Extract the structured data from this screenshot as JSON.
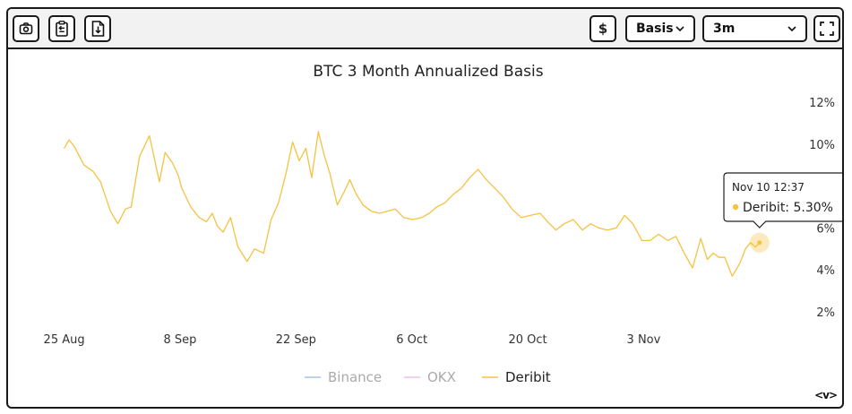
{
  "toolbar": {
    "screenshot_icon": "camera-icon",
    "copy_icon": "clipboard-copy-icon",
    "download_icon": "download-file-icon",
    "currency_label": "$",
    "metric_select": {
      "value": "Basis"
    },
    "range_select": {
      "value": "3m"
    },
    "fullscreen_icon": "fullscreen-icon"
  },
  "chart_data": {
    "type": "line",
    "title": "BTC 3 Month Annualized Basis",
    "xlabel": "",
    "ylabel": "",
    "ylim": [
      2,
      12
    ],
    "y_ticks": [
      "2%",
      "4%",
      "6%",
      "8%",
      "10%",
      "12%"
    ],
    "y_axis_position": "right",
    "x_ticks": [
      "25 Aug",
      "8 Sep",
      "22 Sep",
      "6 Oct",
      "20 Oct",
      "3 Nov"
    ],
    "x_range_days": [
      -4.5,
      87.7
    ],
    "grid": false,
    "legend_position": "bottom",
    "series": [
      {
        "name": "Binance",
        "color": "#a8c4e6",
        "visible": false,
        "values": []
      },
      {
        "name": "OKX",
        "color": "#f0bde8",
        "visible": false,
        "values": []
      },
      {
        "name": "Deribit",
        "color": "#f5c242",
        "visible": true,
        "x_days": [
          0,
          0.6,
          1.2,
          2.4,
          3.5,
          4.4,
          5.6,
          6.5,
          7.4,
          8.1,
          9.1,
          10.3,
          11.5,
          12.2,
          13.1,
          13.8,
          14.2,
          15.3,
          16.3,
          17.2,
          17.9,
          18.5,
          19.2,
          20.1,
          21.0,
          22.1,
          23.0,
          24.1,
          25.0,
          25.9,
          26.8,
          27.6,
          28.4,
          29.2,
          29.9,
          30.7,
          31.4,
          32.1,
          33.0,
          33.8,
          34.5,
          35.3,
          36.1,
          37.1,
          38.1,
          39.0,
          40.0,
          41.0,
          42.1,
          43.2,
          44.1,
          45.0,
          46.0,
          47.0,
          48.0,
          49.0,
          50.0,
          51.0,
          52.0,
          53.0,
          54.1,
          55.2,
          56.3,
          57.5,
          58.4,
          59.4,
          60.4,
          61.5,
          62.6,
          63.6,
          64.6,
          65.6,
          66.7,
          67.7,
          68.7,
          69.8,
          70.8,
          71.8,
          72.9,
          73.9,
          74.9,
          75.9,
          76.9,
          77.7,
          78.4,
          79.1,
          79.8,
          80.7,
          81.6,
          82.3,
          82.9,
          83.5,
          84.0
        ],
        "values": [
          9.8,
          10.2,
          9.9,
          9.0,
          8.7,
          8.2,
          6.8,
          6.2,
          6.9,
          7.0,
          9.4,
          10.4,
          8.2,
          9.6,
          9.1,
          8.5,
          7.9,
          7.0,
          6.5,
          6.3,
          6.7,
          6.1,
          5.8,
          6.5,
          5.1,
          4.4,
          5.0,
          4.8,
          6.4,
          7.2,
          8.6,
          10.1,
          9.2,
          9.8,
          8.4,
          10.6,
          9.5,
          8.6,
          7.1,
          7.7,
          8.3,
          7.6,
          7.1,
          6.8,
          6.7,
          6.8,
          6.9,
          6.5,
          6.4,
          6.5,
          6.7,
          7.0,
          7.2,
          7.6,
          7.9,
          8.4,
          8.8,
          8.3,
          7.9,
          7.5,
          6.9,
          6.5,
          6.6,
          6.7,
          6.3,
          5.9,
          6.2,
          6.4,
          5.9,
          6.2,
          6.0,
          5.9,
          6.0,
          6.6,
          6.2,
          5.4,
          5.4,
          5.7,
          5.4,
          5.6,
          4.8,
          4.1,
          5.5,
          4.5,
          4.8,
          4.6,
          4.6,
          3.7,
          4.3,
          5.0,
          5.3,
          5.1,
          5.3
        ]
      }
    ],
    "tooltip": {
      "time": "Nov 10 12:37",
      "series": "Deribit",
      "value_label": "Deribit: 5.30%"
    }
  },
  "footer": {
    "collapse_label": "<v>"
  }
}
